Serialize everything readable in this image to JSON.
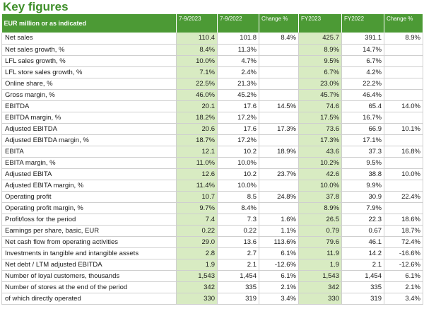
{
  "title": "Key figures",
  "headers": [
    "EUR million or as indicated",
    "7-9/2023",
    "7-9/2022",
    "Change %",
    "FY2023",
    "FY2022",
    "Change %"
  ],
  "rows": [
    [
      "Net sales",
      "110.4",
      "101.8",
      "8.4%",
      "425.7",
      "391.1",
      "8.9%"
    ],
    [
      "Net sales growth, %",
      "8.4%",
      "11.3%",
      "",
      "8.9%",
      "14.7%",
      ""
    ],
    [
      "LFL sales growth, %",
      "10.0%",
      "4.7%",
      "",
      "9.5%",
      "6.7%",
      ""
    ],
    [
      "LFL store sales growth, %",
      "7.1%",
      "2.4%",
      "",
      "6.7%",
      "4.2%",
      ""
    ],
    [
      "Online share, %",
      "22.5%",
      "21.3%",
      "",
      "23.0%",
      "22.2%",
      ""
    ],
    [
      "Gross margin, %",
      "46.0%",
      "45.2%",
      "",
      "45.7%",
      "46.4%",
      ""
    ],
    [
      "EBITDA",
      "20.1",
      "17.6",
      "14.5%",
      "74.6",
      "65.4",
      "14.0%"
    ],
    [
      "EBITDA margin, %",
      "18.2%",
      "17.2%",
      "",
      "17.5%",
      "16.7%",
      ""
    ],
    [
      "Adjusted EBITDA",
      "20.6",
      "17.6",
      "17.3%",
      "73.6",
      "66.9",
      "10.1%"
    ],
    [
      "Adjusted EBITDA margin, %",
      "18.7%",
      "17.2%",
      "",
      "17.3%",
      "17.1%",
      ""
    ],
    [
      "EBITA",
      "12.1",
      "10.2",
      "18.9%",
      "43.6",
      "37.3",
      "16.8%"
    ],
    [
      "EBITA margin, %",
      "11.0%",
      "10.0%",
      "",
      "10.2%",
      "9.5%",
      ""
    ],
    [
      "Adjusted EBITA",
      "12.6",
      "10.2",
      "23.7%",
      "42.6",
      "38.8",
      "10.0%"
    ],
    [
      "Adjusted EBITA margin, %",
      "11.4%",
      "10.0%",
      "",
      "10.0%",
      "9.9%",
      ""
    ],
    [
      "Operating profit",
      "10.7",
      "8.5",
      "24.8%",
      "37.8",
      "30.9",
      "22.4%"
    ],
    [
      "Operating profit margin, %",
      "9.7%",
      "8.4%",
      "",
      "8.9%",
      "7.9%",
      ""
    ],
    [
      "Profit/loss for the period",
      "7.4",
      "7.3",
      "1.6%",
      "26.5",
      "22.3",
      "18.6%"
    ],
    [
      "Earnings per share, basic, EUR",
      "0.22",
      "0.22",
      "1.1%",
      "0.79",
      "0.67",
      "18.7%"
    ],
    [
      "Net cash flow from operating activities",
      "29.0",
      "13.6",
      "113.6%",
      "79.6",
      "46.1",
      "72.4%"
    ],
    [
      "Investments in tangible and intangible assets",
      "2.8",
      "2.7",
      "6.1%",
      "11.9",
      "14.2",
      "-16.6%"
    ],
    [
      "Net debt / LTM adjusted EBITDA",
      "1.9",
      "2.1",
      "-12.6%",
      "1.9",
      "2.1",
      "-12.6%"
    ],
    [
      "Number of loyal customers, thousands",
      "1,543",
      "1,454",
      "6.1%",
      "1,543",
      "1,454",
      "6.1%"
    ],
    [
      "Number of stores at the end of the period",
      "342",
      "335",
      "2.1%",
      "342",
      "335",
      "2.1%"
    ],
    [
      "of which directly operated",
      "330",
      "319",
      "3.4%",
      "330",
      "319",
      "3.4%"
    ]
  ],
  "colors": {
    "title": "#3f8f2a",
    "header_bg": "#4c9a35",
    "highlight": "#d8ebc2"
  }
}
